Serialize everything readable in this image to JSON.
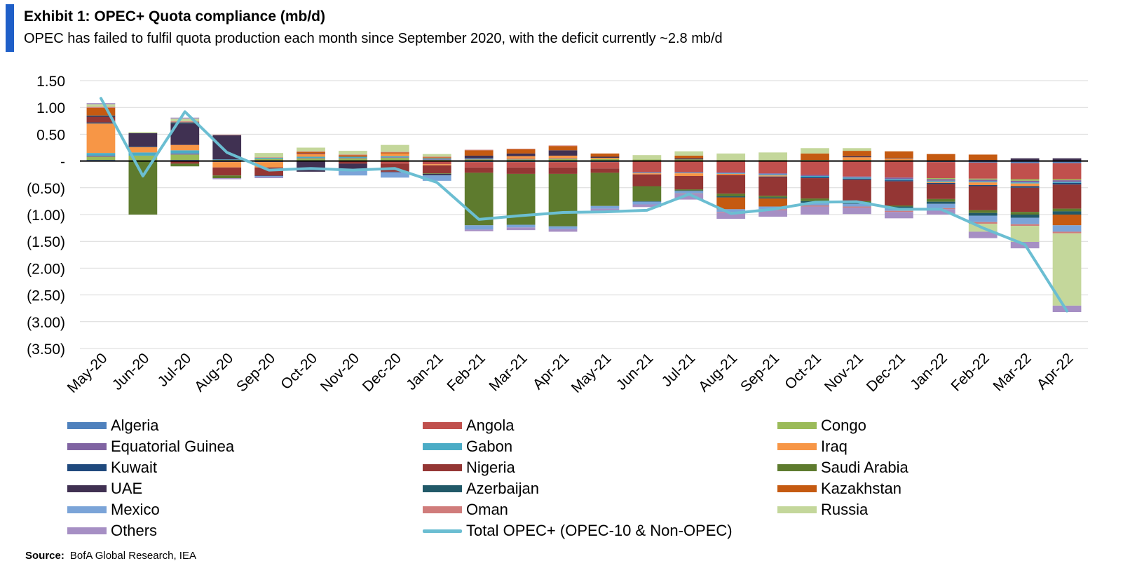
{
  "header": {
    "title": "Exhibit 1: OPEC+ Quota compliance (mb/d)",
    "subtitle": "OPEC has failed to fulfil quota production each month since September 2020, with the deficit currently ~2.8 mb/d"
  },
  "source": {
    "label": "Source:",
    "text": "BofA Global Research, IEA"
  },
  "chart_data": {
    "type": "bar",
    "stacked": true,
    "title": "Exhibit 1: OPEC+ Quota compliance (mb/d)",
    "subtitle": "OPEC has failed to fulfil quota production each month since September 2020, with the deficit currently ~2.8 mb/d",
    "xlabel": "",
    "ylabel": "",
    "ylim": [
      -3.5,
      1.5
    ],
    "yticks": [
      1.5,
      1.0,
      0.5,
      0,
      -0.5,
      -1.0,
      -1.5,
      -2.0,
      -2.5,
      -3.0,
      -3.5
    ],
    "ytick_labels": [
      "1.50",
      "1.00",
      "0.50",
      "-",
      "(0.50)",
      "(1.00)",
      "(1.50)",
      "(2.00)",
      "(2.50)",
      "(3.00)",
      "(3.50)"
    ],
    "grid": true,
    "legend_position": "bottom",
    "categories": [
      "May-20",
      "Jun-20",
      "Jul-20",
      "Aug-20",
      "Sep-20",
      "Oct-20",
      "Nov-20",
      "Dec-20",
      "Jan-21",
      "Feb-21",
      "Mar-21",
      "Apr-21",
      "May-21",
      "Jun-21",
      "Jul-21",
      "Aug-21",
      "Sep-21",
      "Oct-21",
      "Nov-21",
      "Dec-21",
      "Jan-22",
      "Feb-22",
      "Mar-22",
      "Apr-22"
    ],
    "series": [
      {
        "name": "Algeria",
        "color": "#4f81bd",
        "values": [
          0.02,
          0.0,
          0.02,
          -0.01,
          -0.01,
          0.0,
          0.0,
          0.0,
          -0.01,
          -0.02,
          -0.02,
          -0.02,
          -0.02,
          -0.01,
          -0.01,
          -0.01,
          -0.01,
          -0.01,
          -0.01,
          -0.01,
          -0.02,
          -0.03,
          -0.04,
          -0.04
        ]
      },
      {
        "name": "Angola",
        "color": "#c0504d",
        "values": [
          0.0,
          0.0,
          0.0,
          0.0,
          0.0,
          0.0,
          0.0,
          -0.05,
          -0.05,
          -0.1,
          -0.1,
          -0.1,
          -0.12,
          -0.2,
          -0.2,
          -0.2,
          -0.22,
          -0.25,
          -0.28,
          -0.3,
          -0.3,
          -0.3,
          -0.3,
          -0.3
        ]
      },
      {
        "name": "Congo",
        "color": "#9bbb59",
        "values": [
          0.06,
          0.1,
          0.1,
          0.02,
          0.04,
          0.05,
          0.05,
          0.06,
          0.02,
          0.03,
          0.03,
          0.04,
          0.04,
          0.03,
          0.03,
          0.02,
          0.02,
          0.02,
          0.02,
          0.0,
          -0.02,
          -0.02,
          -0.03,
          -0.02
        ]
      },
      {
        "name": "Equatorial Guinea",
        "color": "#8064a2",
        "values": [
          0.02,
          0.0,
          0.02,
          -0.01,
          -0.01,
          0.01,
          0.01,
          0.01,
          0.01,
          0.01,
          0.01,
          0.01,
          0.0,
          -0.01,
          -0.01,
          -0.02,
          -0.02,
          -0.02,
          -0.02,
          -0.03,
          -0.03,
          -0.03,
          -0.03,
          -0.03
        ]
      },
      {
        "name": "Gabon",
        "color": "#4bacc6",
        "values": [
          0.05,
          0.06,
          0.06,
          0.01,
          0.02,
          0.02,
          0.02,
          0.02,
          0.02,
          0.01,
          0.0,
          0.0,
          0.0,
          -0.01,
          -0.01,
          -0.01,
          -0.02,
          -0.02,
          -0.02,
          -0.02,
          -0.02,
          -0.02,
          -0.02,
          -0.02
        ]
      },
      {
        "name": "Iraq",
        "color": "#f79646",
        "values": [
          0.55,
          0.1,
          0.1,
          -0.1,
          -0.1,
          0.05,
          0.0,
          0.05,
          -0.02,
          0.0,
          0.05,
          0.05,
          0.02,
          -0.02,
          -0.05,
          -0.02,
          -0.02,
          0.0,
          0.05,
          0.05,
          -0.02,
          -0.05,
          -0.05,
          0.0
        ]
      },
      {
        "name": "Kuwait",
        "color": "#1f497d",
        "values": [
          0.02,
          0.01,
          0.0,
          0.0,
          0.0,
          0.0,
          0.0,
          0.0,
          0.0,
          0.0,
          0.0,
          0.0,
          0.0,
          0.0,
          0.0,
          0.0,
          -0.01,
          -0.02,
          -0.02,
          -0.02,
          -0.02,
          -0.02,
          -0.03,
          -0.03
        ]
      },
      {
        "name": "Nigeria",
        "color": "#943634",
        "values": [
          0.1,
          0.0,
          -0.05,
          -0.15,
          -0.15,
          0.02,
          -0.05,
          -0.15,
          -0.15,
          -0.1,
          -0.12,
          -0.12,
          -0.08,
          -0.22,
          -0.25,
          -0.35,
          -0.35,
          -0.38,
          -0.4,
          -0.45,
          -0.28,
          -0.45,
          -0.45,
          -0.45
        ]
      },
      {
        "name": "Saudi Arabia",
        "color": "#5e7b2e",
        "values": [
          0.0,
          -1.0,
          -0.05,
          -0.05,
          0.0,
          0.0,
          0.0,
          0.0,
          -0.01,
          -0.98,
          -0.95,
          -0.98,
          -0.62,
          -0.28,
          -0.02,
          -0.05,
          -0.03,
          -0.05,
          -0.02,
          -0.02,
          -0.05,
          -0.05,
          -0.05,
          -0.05
        ]
      },
      {
        "name": "UAE",
        "color": "#403152",
        "values": [
          0.02,
          0.25,
          0.4,
          0.45,
          -0.01,
          -0.2,
          -0.1,
          -0.01,
          -0.02,
          0.05,
          0.05,
          0.1,
          0.02,
          0.0,
          0.02,
          0.0,
          0.0,
          0.0,
          0.02,
          0.01,
          0.01,
          0.02,
          0.05,
          0.05
        ]
      },
      {
        "name": "Azerbaijan",
        "color": "#215968",
        "values": [
          0.01,
          0.0,
          0.02,
          0.0,
          0.0,
          0.0,
          0.0,
          0.0,
          -0.01,
          0.0,
          0.0,
          0.0,
          0.0,
          -0.01,
          -0.01,
          -0.02,
          -0.02,
          -0.03,
          -0.03,
          -0.03,
          -0.04,
          -0.05,
          -0.06,
          -0.06
        ]
      },
      {
        "name": "Kazakhstan",
        "color": "#c55a11",
        "values": [
          0.14,
          0.0,
          0.0,
          0.0,
          0.0,
          0.02,
          0.03,
          0.02,
          0.02,
          0.1,
          0.08,
          0.08,
          0.06,
          0.0,
          0.05,
          -0.22,
          -0.15,
          0.12,
          0.1,
          0.12,
          0.12,
          0.1,
          0.0,
          -0.2
        ]
      },
      {
        "name": "Mexico",
        "color": "#7ba4d8",
        "values": [
          0.0,
          0.0,
          0.0,
          0.0,
          -0.02,
          0.0,
          -0.12,
          -0.1,
          -0.1,
          -0.08,
          -0.05,
          -0.05,
          -0.05,
          -0.05,
          -0.05,
          -0.05,
          -0.05,
          -0.05,
          -0.05,
          -0.05,
          -0.08,
          -0.12,
          -0.12,
          -0.12
        ]
      },
      {
        "name": "Oman",
        "color": "#d07c7b",
        "values": [
          0.02,
          0.0,
          0.02,
          0.01,
          0.01,
          0.01,
          0.01,
          0.01,
          0.01,
          0.01,
          0.01,
          0.01,
          0.0,
          0.0,
          -0.01,
          -0.01,
          -0.02,
          -0.02,
          -0.02,
          -0.02,
          -0.02,
          -0.03,
          -0.03,
          -0.03
        ]
      },
      {
        "name": "Russia",
        "color": "#c4d79b",
        "values": [
          0.05,
          0.02,
          0.05,
          0.0,
          0.08,
          0.07,
          0.07,
          0.13,
          0.05,
          0.0,
          0.0,
          0.0,
          0.0,
          0.08,
          0.08,
          0.12,
          0.14,
          0.1,
          0.05,
          0.0,
          0.0,
          -0.15,
          -0.3,
          -1.35
        ]
      },
      {
        "name": "Others",
        "color": "#a68fc4",
        "values": [
          0.02,
          0.0,
          0.02,
          -0.02,
          -0.02,
          0.0,
          0.0,
          0.0,
          0.0,
          -0.03,
          -0.05,
          -0.05,
          -0.05,
          -0.05,
          -0.1,
          -0.12,
          -0.12,
          -0.15,
          -0.12,
          -0.12,
          -0.1,
          -0.12,
          -0.12,
          -0.12
        ]
      }
    ],
    "line_series": {
      "name": "Total OPEC+ (OPEC-10 & Non-OPEC)",
      "color": "#6bbed2",
      "values": [
        1.17,
        -0.28,
        0.92,
        0.16,
        -0.17,
        -0.14,
        -0.17,
        -0.14,
        -0.4,
        -1.09,
        -1.02,
        -0.96,
        -0.95,
        -0.92,
        -0.62,
        -0.98,
        -0.9,
        -0.77,
        -0.76,
        -0.9,
        -0.9,
        -1.25,
        -1.56,
        -2.8
      ]
    }
  }
}
